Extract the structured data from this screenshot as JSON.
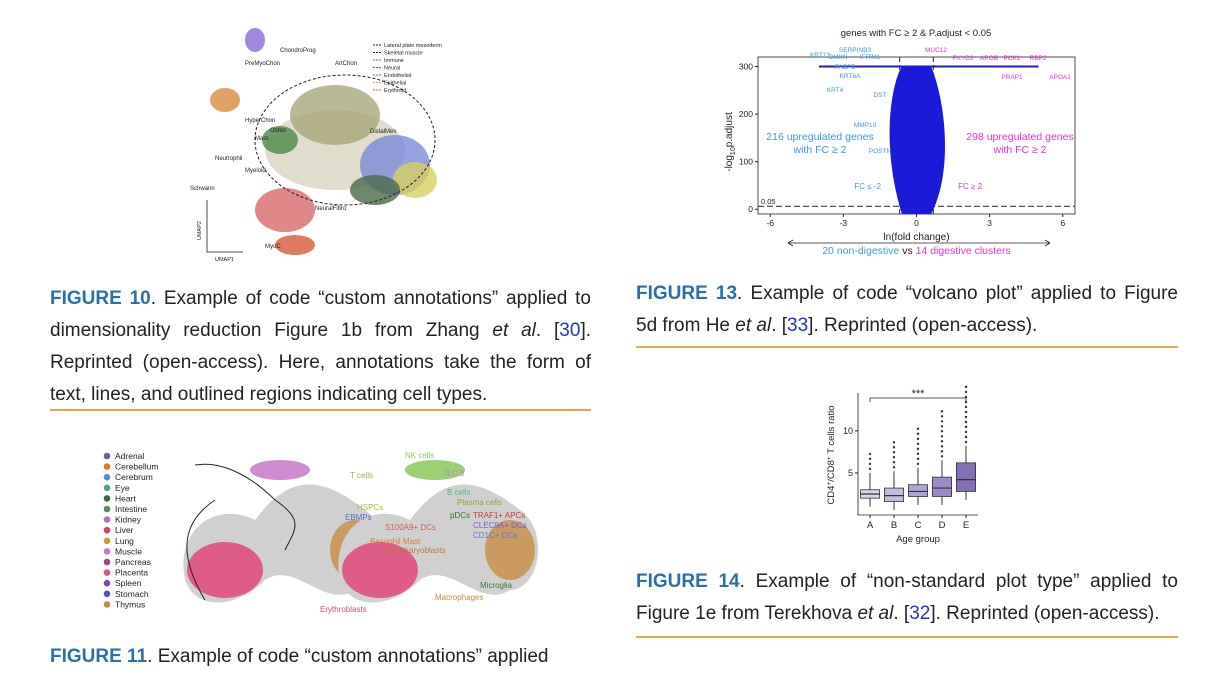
{
  "fig10": {
    "legend": [
      "Lateral plate mesoderm",
      "Skeletal muscle",
      "Immune",
      "Neural",
      "Endothelial",
      "Epithelial",
      "Erythroid"
    ],
    "labels": [
      "ChondroProg",
      "PreMyoChon",
      "ArtChon",
      "HyperChon",
      "Osteo",
      "Mast",
      "Neutrophil",
      "Myeloid",
      "Schwann",
      "MyoC",
      "NeuralFibro",
      "DistalMes"
    ],
    "axis_x": "UMAP1",
    "axis_y": "UMAP2",
    "caption": {
      "label": "FIGURE 10",
      "parts": [
        {
          "text": ". Example of code “custom annotations” applied to dimensionality reduction Figure 1b from Zhang "
        },
        {
          "italic": "et al"
        },
        {
          "text": ". ["
        },
        {
          "ref": "30"
        },
        {
          "text": "]. Reprinted (open-access). Here, annotations take the form of text, lines, and outlined regions indicating cell types."
        }
      ]
    }
  },
  "fig11": {
    "legend": [
      {
        "name": "Adrenal",
        "color": "#6a5aa8"
      },
      {
        "name": "Cerebellum",
        "color": "#d8782a"
      },
      {
        "name": "Cerebrum",
        "color": "#5a8ac8"
      },
      {
        "name": "Eye",
        "color": "#4aa878"
      },
      {
        "name": "Heart",
        "color": "#3a6a3a"
      },
      {
        "name": "Intestine",
        "color": "#5a8a5a"
      },
      {
        "name": "Kidney",
        "color": "#a878b8"
      },
      {
        "name": "Liver",
        "color": "#d8406a"
      },
      {
        "name": "Lung",
        "color": "#c89a3a"
      },
      {
        "name": "Muscle",
        "color": "#c878c8"
      },
      {
        "name": "Pancreas",
        "color": "#b03a8a"
      },
      {
        "name": "Placenta",
        "color": "#e0508a"
      },
      {
        "name": "Spleen",
        "color": "#7a4aa8"
      },
      {
        "name": "Stomach",
        "color": "#4a5aa8"
      },
      {
        "name": "Thymus",
        "color": "#c8884a"
      }
    ],
    "annotations": [
      {
        "text": "NK cells",
        "color": "#8ac85a"
      },
      {
        "text": "T cells",
        "color": "#8ab83a"
      },
      {
        "text": "ILC 3",
        "color": "#c878d8"
      },
      {
        "text": "B cells",
        "color": "#5ab87a"
      },
      {
        "text": "Plasma cells",
        "color": "#8aa83a"
      },
      {
        "text": "HSPCs",
        "color": "#a8b83a"
      },
      {
        "text": "pDCs",
        "color": "#3a6a3a"
      },
      {
        "text": "EBMPs",
        "color": "#5a6ac8"
      },
      {
        "text": "TRAF1+ APCs",
        "color": "#c83a3a"
      },
      {
        "text": "CLEC9A+ DCs",
        "color": "#7a5ac8"
      },
      {
        "text": "CD1C+ DCs",
        "color": "#5a7ac8"
      },
      {
        "text": "S100A9+ DCs",
        "color": "#d85a5a"
      },
      {
        "text": "Basophil Mast",
        "color": "#d87a3a"
      },
      {
        "text": "Megakaryoblasts",
        "color": "#b8783a"
      },
      {
        "text": "Microglia",
        "color": "#3a7a3a"
      },
      {
        "text": "Macrophages",
        "color": "#c8883a"
      },
      {
        "text": "Erythroblasts",
        "color": "#d84a6a"
      }
    ],
    "caption": {
      "label": "FIGURE 11",
      "parts": [
        {
          "text": ". Example of code “custom annotations” applied"
        }
      ]
    }
  },
  "fig13": {
    "title": "genes with FC ≥ 2 & P.adjust < 0.05",
    "ylabel": [
      "-log",
      "10",
      "p.adjust"
    ],
    "xlabel": "ln(fold change)",
    "xlim": [
      -6.5,
      6.5
    ],
    "xticks": [
      -6,
      -3,
      0,
      3,
      6
    ],
    "ylim": [
      -10,
      320
    ],
    "yticks": [
      0,
      100,
      200,
      300
    ],
    "left_note": [
      "216 upregulated genes",
      "with FC ≥ 2"
    ],
    "right_note": [
      "298 upregulated genes",
      "with FC ≥ 2"
    ],
    "fc_left": "FC ≤ -2",
    "fc_right": "FC ≥ 2",
    "threshold": "0.05",
    "genes_left": [
      "KRT13",
      "DMKN",
      "SERPINB3",
      "IFITM1",
      "FABP5",
      "KRT6A",
      "KRT4",
      "DST",
      "MMP10",
      "POSTN"
    ],
    "genes_right": [
      "MUC12",
      "FXYD2",
      "APOB",
      "PCK1",
      "RBP2",
      "PRAP1",
      "APOA1"
    ],
    "bottom": [
      "20 non-digestive",
      "vs",
      "14 digestive clusters"
    ],
    "caption": {
      "label": "FIGURE 13",
      "parts": [
        {
          "text": ". Example of code “volcano plot” applied to Figure 5d from He "
        },
        {
          "italic": "et al"
        },
        {
          "text": ". ["
        },
        {
          "ref": "33"
        },
        {
          "text": "]. Reprinted (open-access)."
        }
      ]
    }
  },
  "fig14": {
    "ylabel": [
      "CD4",
      "+",
      "/CD8",
      "+",
      " T cells ratio"
    ],
    "xlabel": "Age group",
    "significance": "***",
    "categories": [
      "A",
      "B",
      "C",
      "D",
      "E"
    ],
    "ylim": [
      0,
      14.5
    ],
    "yticks": [
      5,
      10
    ],
    "q1": [
      2,
      1.6,
      2.2,
      2.2,
      2.8
    ],
    "median": [
      2.5,
      2.3,
      2.8,
      3.2,
      4.2
    ],
    "q3": [
      3,
      3.2,
      3.6,
      4.5,
      6.2
    ],
    "colors": [
      "#d8d4ec",
      "#c4bce0",
      "#b0a4d4",
      "#9a8cc8",
      "#8470b8"
    ],
    "caption": {
      "label": "FIGURE 14",
      "parts": [
        {
          "text": ". Example of “non-standard plot type” applied to Figure 1e from Terekhova "
        },
        {
          "italic": "et al"
        },
        {
          "text": ". ["
        },
        {
          "ref": "32"
        },
        {
          "text": "]. Reprinted (open-access)."
        }
      ]
    }
  }
}
